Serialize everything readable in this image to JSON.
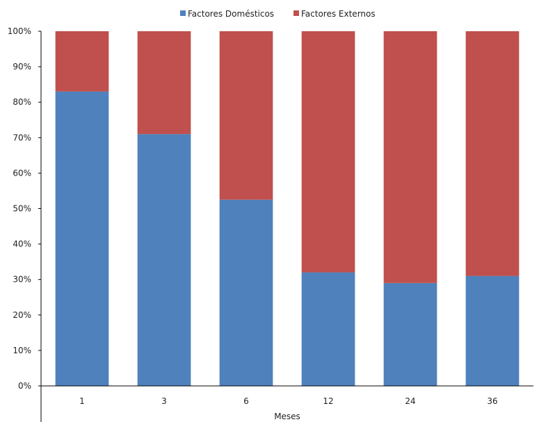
{
  "chart_data": {
    "type": "bar",
    "stacked": true,
    "percent_stacked": true,
    "categories": [
      "1",
      "3",
      "6",
      "12",
      "24",
      "36"
    ],
    "series": [
      {
        "name": "Factores Domésticos",
        "values": [
          83,
          71,
          52.5,
          32,
          29,
          31
        ],
        "color": "#4F81BD"
      },
      {
        "name": "Factores Externos",
        "values": [
          17,
          29,
          47.5,
          68,
          71,
          69
        ],
        "color": "#C0504D"
      }
    ],
    "title": "",
    "xlabel": "Meses",
    "ylabel": "",
    "ylim": [
      0,
      100
    ],
    "yticks": [
      "0%",
      "10%",
      "20%",
      "30%",
      "40%",
      "50%",
      "60%",
      "70%",
      "80%",
      "90%",
      "100%"
    ],
    "legend_position": "top-center",
    "grid": false
  }
}
